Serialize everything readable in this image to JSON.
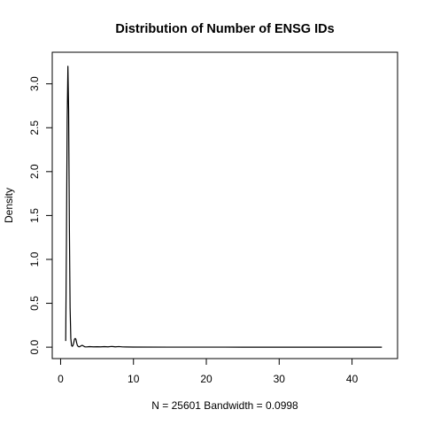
{
  "chart_data": {
    "type": "line",
    "title": "Distribution of Number of ENSG IDs",
    "xlabel": "N = 25601   Bandwidth = 0.0998",
    "ylabel": "Density",
    "xlim": [
      -1.15,
      46.25
    ],
    "ylim": [
      -0.13,
      3.36
    ],
    "x_ticks": [
      0,
      10,
      20,
      30,
      40
    ],
    "x_tick_labels": [
      "0",
      "10",
      "20",
      "30",
      "40"
    ],
    "y_ticks": [
      0.0,
      0.5,
      1.0,
      1.5,
      2.0,
      2.5,
      3.0
    ],
    "y_tick_labels": [
      "0.0",
      "0.5",
      "1.0",
      "1.5",
      "2.0",
      "2.5",
      "3.0"
    ],
    "grid": false,
    "legend": "none",
    "line_color": "#000000",
    "series": [
      {
        "x": [
          0.7,
          0.8,
          0.9,
          1.0,
          1.1,
          1.2,
          1.3,
          1.4,
          1.5,
          1.6,
          1.7,
          1.8,
          1.9,
          2.0,
          2.1,
          2.2,
          2.3,
          2.4,
          2.5,
          2.6,
          2.7,
          2.8,
          2.9,
          3.0,
          3.1,
          3.2,
          3.3,
          3.4,
          3.6,
          3.8,
          4.0,
          4.5,
          5.0,
          5.5,
          6.0,
          6.5,
          7.0,
          7.5,
          8.0,
          8.5,
          9.0,
          10,
          15,
          20,
          25,
          30,
          35,
          40,
          44.1
        ],
        "y": [
          0.07,
          1.2,
          2.6,
          3.2,
          2.7,
          1.4,
          0.45,
          0.1,
          0.02,
          0.01,
          0.02,
          0.05,
          0.09,
          0.1,
          0.09,
          0.05,
          0.02,
          0.01,
          0.005,
          0.005,
          0.01,
          0.015,
          0.02,
          0.02,
          0.015,
          0.01,
          0.005,
          0.003,
          0.003,
          0.005,
          0.006,
          0.004,
          0.005,
          0.004,
          0.006,
          0.004,
          0.008,
          0.004,
          0.007,
          0.003,
          0.002,
          0.001,
          0.0005,
          0.0003,
          0.0002,
          0.0002,
          0.0001,
          0.0001,
          0.0001
        ]
      }
    ]
  }
}
